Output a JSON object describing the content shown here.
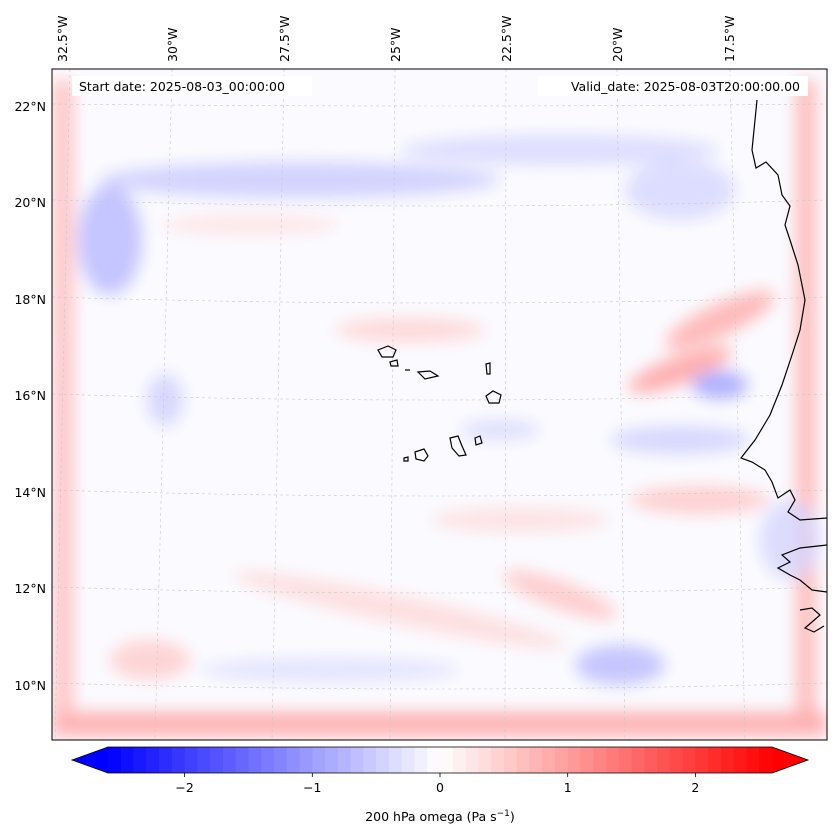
{
  "map": {
    "start_label": "Start date: 2025-08-03_00:00:00",
    "valid_label": "Valid_date: 2025-08-03T20:00:00.00",
    "longitude_labels": [
      "32.5°W",
      "30°W",
      "27.5°W",
      "25°W",
      "22.5°W",
      "20°W",
      "17.5°W"
    ],
    "latitude_labels": [
      "22°N",
      "20°N",
      "18°N",
      "16°N",
      "14°N",
      "12°N",
      "10°N"
    ],
    "field_colors": {
      "negative": "#0000ff",
      "zero": "#ffffff",
      "positive": "#ff0000"
    }
  },
  "colorbar": {
    "label": "200 hPa omega (Pa s",
    "label_superscript": "−1",
    "label_close": ")",
    "range": [
      -2.6,
      2.6
    ],
    "ticks": [
      {
        "value": -2,
        "label": "−2"
      },
      {
        "value": -1,
        "label": "−1"
      },
      {
        "value": 0,
        "label": "0"
      },
      {
        "value": 1,
        "label": "1"
      },
      {
        "value": 2,
        "label": "2"
      }
    ]
  }
}
